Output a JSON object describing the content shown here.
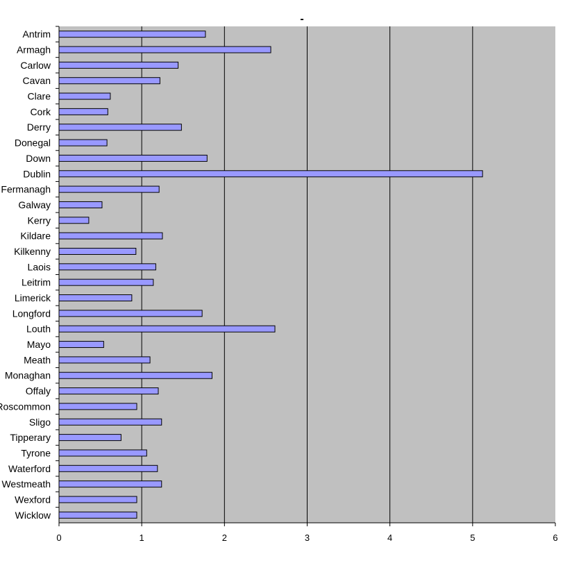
{
  "chart_data": {
    "type": "bar",
    "orientation": "horizontal",
    "title": "-",
    "xlabel": "",
    "ylabel": "",
    "xlim": [
      0,
      6
    ],
    "x_ticks": [
      "0",
      "1",
      "2",
      "3",
      "4",
      "5",
      "6"
    ],
    "grid": "vertical major gridlines",
    "legend": "none",
    "categories": [
      "Antrim",
      "Armagh",
      "Carlow",
      "Cavan",
      "Clare",
      "Cork",
      "Derry",
      "Donegal",
      "Down",
      "Dublin",
      "Fermanagh",
      "Galway",
      "Kerry",
      "Kildare",
      "Kilkenny",
      "Laois",
      "Leitrim",
      "Limerick",
      "Longford",
      "Louth",
      "Mayo",
      "Meath",
      "Monaghan",
      "Offaly",
      "Roscommon",
      "Sligo",
      "Tipperary",
      "Tyrone",
      "Waterford",
      "Westmeath",
      "Wexford",
      "Wicklow"
    ],
    "values": [
      1.77,
      2.56,
      1.44,
      1.22,
      0.62,
      0.59,
      1.48,
      0.58,
      1.79,
      5.12,
      1.21,
      0.52,
      0.36,
      1.25,
      0.93,
      1.17,
      1.14,
      0.88,
      1.73,
      2.61,
      0.54,
      1.1,
      1.85,
      1.2,
      0.94,
      1.24,
      0.75,
      1.06,
      1.19,
      1.24,
      0.94,
      0.94
    ],
    "colors": {
      "bar_fill": "#9999ff",
      "bar_stroke": "#000000",
      "plot_background": "#c0c0c0",
      "gridline": "#000000"
    }
  }
}
